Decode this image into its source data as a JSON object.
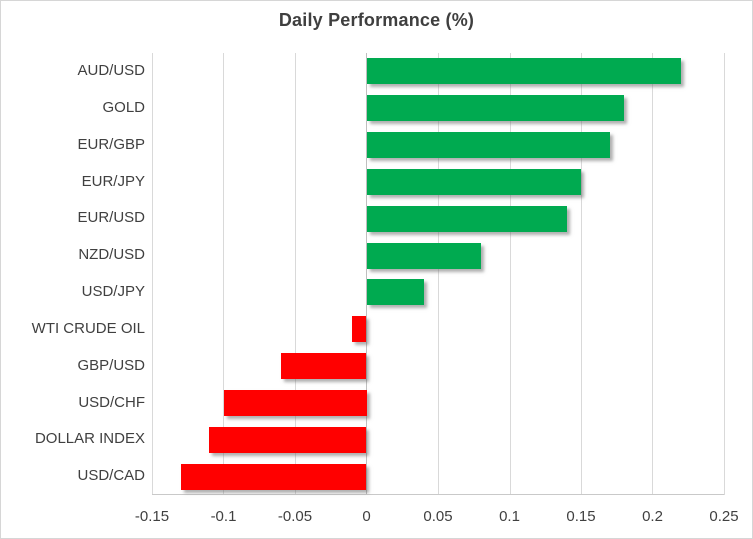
{
  "chart": {
    "title": "Daily Performance (%)"
  },
  "chart_data": {
    "type": "bar",
    "orientation": "horizontal",
    "title": "Daily Performance (%)",
    "categories": [
      "AUD/USD",
      "GOLD",
      "EUR/GBP",
      "EUR/JPY",
      "EUR/USD",
      "NZD/USD",
      "USD/JPY",
      "WTI CRUDE OIL",
      "GBP/USD",
      "USD/CHF",
      "DOLLAR INDEX",
      "USD/CAD"
    ],
    "values": [
      0.22,
      0.18,
      0.17,
      0.15,
      0.14,
      0.08,
      0.04,
      -0.01,
      -0.06,
      -0.1,
      -0.11,
      -0.13
    ],
    "xlabel": "",
    "ylabel": "",
    "xlim": [
      -0.15,
      0.25
    ],
    "x_ticks": [
      -0.15,
      -0.1,
      -0.05,
      0,
      0.05,
      0.1,
      0.15,
      0.2,
      0.25
    ],
    "x_tick_labels": [
      "-0.15",
      "-0.1",
      "-0.05",
      "0",
      "0.05",
      "0.1",
      "0.15",
      "0.2",
      "0.25"
    ],
    "grid": "vertical-only",
    "legend": "none",
    "colors": {
      "positive": "#00AA50",
      "negative": "#FF0000",
      "gridline": "#D9D9D9",
      "text": "#404040"
    }
  }
}
